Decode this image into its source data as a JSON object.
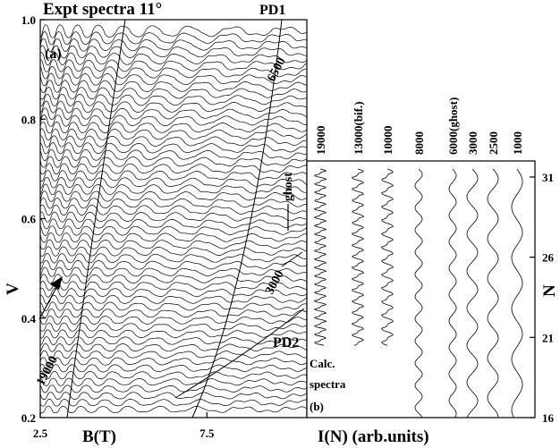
{
  "chart_data": [
    {
      "panel": "a",
      "type": "line",
      "title": "Expt spectra 11°",
      "panel_label": "(a)",
      "xlabel": "B(T)",
      "ylabel": "V",
      "xlim": [
        2.5,
        10.5
      ],
      "ylim": [
        0.2,
        1.0
      ],
      "x_ticks": [
        "2.5",
        "7.5"
      ],
      "y_ticks": [
        "0.2",
        "0.4",
        "0.6",
        "0.8",
        "1.0"
      ],
      "trace_count": 56,
      "annotations": [
        {
          "text": "PD1",
          "kind": "label"
        },
        {
          "text": "6500",
          "kind": "frequency"
        },
        {
          "text": "ghost",
          "kind": "label"
        },
        {
          "text": "3000",
          "kind": "frequency"
        },
        {
          "text": "PD2",
          "kind": "label"
        },
        {
          "text": "19000",
          "kind": "frequency"
        }
      ]
    },
    {
      "panel": "b",
      "type": "line",
      "panel_label": "(b)",
      "caption_lines": [
        "Calc.",
        "spectra",
        "(b)"
      ],
      "xlabel": "I(N) (arb.units)",
      "ylabel": "N",
      "ylim": [
        16,
        32
      ],
      "y_ticks": [
        "16",
        "21",
        "26",
        "31"
      ],
      "series": [
        {
          "name": "19000",
          "frequency": 19000,
          "n_min": 20.5,
          "n_max": 31.5
        },
        {
          "name": "13000(bif.)",
          "frequency": 13000,
          "n_min": 20.5,
          "n_max": 31.5
        },
        {
          "name": "10000",
          "frequency": 10000,
          "n_min": 20.5,
          "n_max": 31.5
        },
        {
          "name": "8000",
          "frequency": 8000,
          "n_min": 16,
          "n_max": 31.5
        },
        {
          "name": "6000(ghost)",
          "frequency": 6000,
          "n_min": 16,
          "n_max": 31.5
        },
        {
          "name": "3000",
          "frequency": 3000,
          "n_min": 16,
          "n_max": 31.5
        },
        {
          "name": "2500",
          "frequency": 2500,
          "n_min": 16,
          "n_max": 31.5
        },
        {
          "name": "1000",
          "frequency": 1000,
          "n_min": 16,
          "n_max": 31.5
        }
      ]
    }
  ]
}
